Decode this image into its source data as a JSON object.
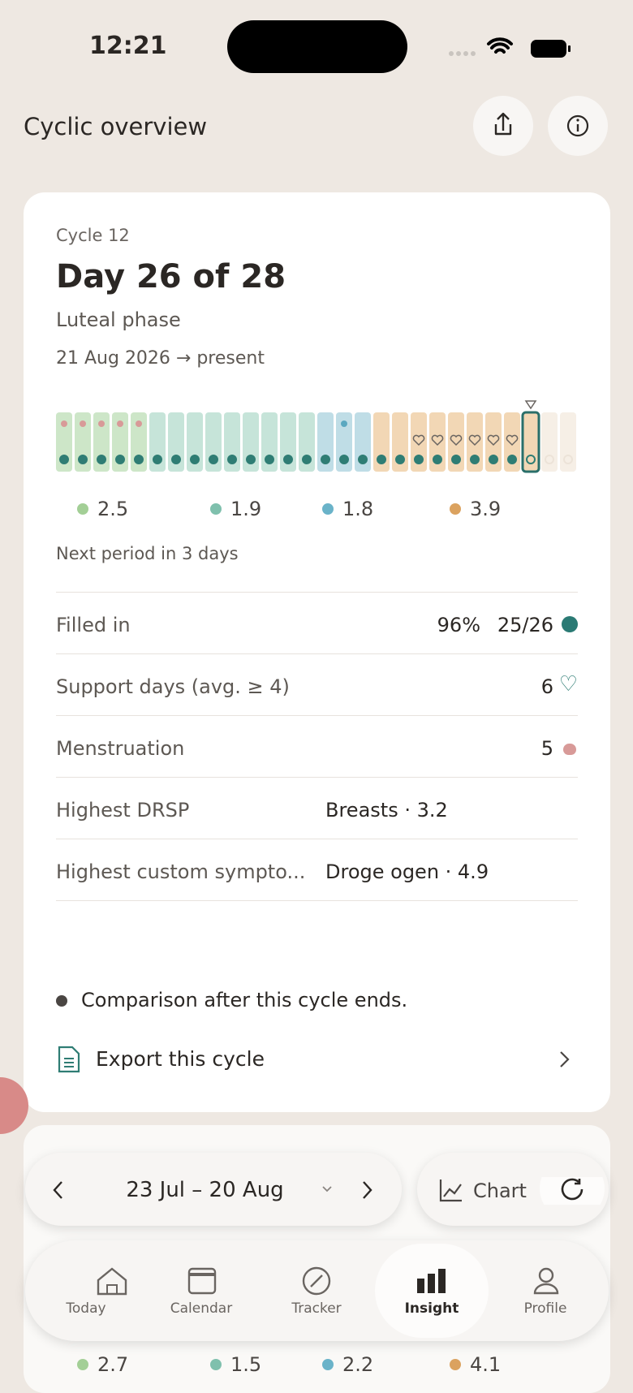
{
  "status_bar": {
    "time": "12:21"
  },
  "header": {
    "title": "Cyclic overview"
  },
  "cycle_card": {
    "cycle": "Cycle 12",
    "day": "Day 26 of 28",
    "phase": "Luteal phase",
    "dates": "21 Aug 2026 → present",
    "phase_averages": [
      2.5,
      1.9,
      1.8,
      3.9
    ],
    "next_period": "Next period in 3 days",
    "rows": [
      {
        "label": "Filled in",
        "values": [
          "96%",
          "25/26"
        ]
      },
      {
        "label": "Support days (avg. ≥ 4)",
        "values": [
          "6"
        ]
      },
      {
        "label": "Menstruation",
        "values": [
          "5"
        ]
      },
      {
        "label": "Highest DRSP",
        "values": [
          "Breasts · 3.2"
        ]
      },
      {
        "label": "Highest custom sympto...",
        "values": [
          "Droge ogen · 4.9"
        ]
      }
    ],
    "note": "Comparison after this cycle ends.",
    "export": "Export this cycle"
  },
  "toolbar": {
    "range": "23 Jul – 20 Aug",
    "chart": "Chart"
  },
  "nav": [
    "Today",
    "Calendar",
    "Tracker",
    "Insight",
    "Profile"
  ],
  "next_card": {
    "phase_averages": [
      2.7,
      1.5,
      2.2,
      4.1
    ]
  }
}
